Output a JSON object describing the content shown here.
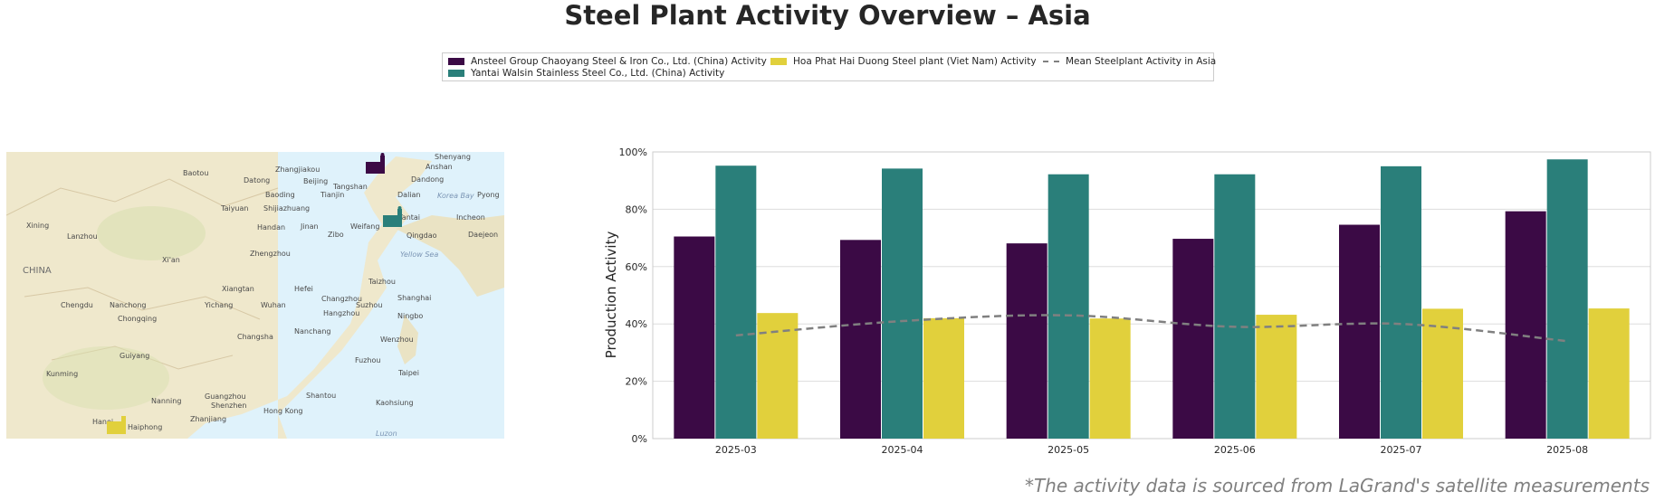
{
  "title": "Steel Plant Activity Overview – Asia",
  "footnote": "*The activity data is sourced from LaGrand's satellite measurements",
  "legend": {
    "items": [
      {
        "label": "Ansteel Group Chaoyang Steel & Iron Co., Ltd. (China) Activity",
        "color": "#3b0a45"
      },
      {
        "label": "Yantai Walsin Stainless Steel Co., Ltd. (China) Activity",
        "color": "#2a7f7a"
      },
      {
        "label": "Hoa Phat Hai Duong Steel plant (Viet Nam) Activity",
        "color": "#e1d03c"
      },
      {
        "label": "Mean Steelplant Activity in Asia",
        "color": "#808080"
      }
    ]
  },
  "map": {
    "place_labels": [
      "Baotou",
      "Zhangjiakou",
      "Shenyang",
      "Anshan",
      "Datong",
      "Beijing",
      "Tangshan",
      "Dandong",
      "Baoding",
      "Tianjin",
      "Dalian",
      "Korea Bay",
      "Pyong",
      "Taiyuan",
      "Shijiazhuang",
      "Dalian",
      "Xining",
      "Lanzhou",
      "Handan",
      "Jinan",
      "Weifang",
      "Yantai",
      "Incheon",
      "Daejeon",
      "Zibo",
      "Qingdao",
      "Yellow Sea",
      "Xi'an",
      "Zhengzhou",
      "CHINA",
      "Xiangtan",
      "Hefei",
      "Taizhou",
      "Chengdu",
      "Nanchong",
      "Yichang",
      "Wuhan",
      "Changzhou",
      "Suzhou",
      "Shanghai",
      "Chongqing",
      "Hangzhou",
      "Ningbo",
      "Changsha",
      "Nanchang",
      "Wenzhou",
      "Guiyang",
      "Fuzhou",
      "Kunming",
      "Taipei",
      "Nanning",
      "Guangzhou",
      "Shantou",
      "Shenzhen",
      "Hong Kong",
      "Kaohsiung",
      "Zhanjiang",
      "Hanoi",
      "Haiphong",
      "Luzon"
    ]
  },
  "chart_data": {
    "type": "bar",
    "categories": [
      "2025-03",
      "2025-04",
      "2025-05",
      "2025-06",
      "2025-07",
      "2025-08"
    ],
    "series": [
      {
        "name": "Ansteel Group Chaoyang Steel & Iron Co., Ltd. (China) Activity",
        "color": "#3b0a45",
        "values": [
          70.5,
          69.3,
          68.1,
          69.7,
          74.6,
          79.3
        ]
      },
      {
        "name": "Yantai Walsin Stainless Steel Co., Ltd. (China) Activity",
        "color": "#2a7f7a",
        "values": [
          95.2,
          94.2,
          92.2,
          92.2,
          95.0,
          97.4
        ]
      },
      {
        "name": "Hoa Phat Hai Duong Steel plant (Viet Nam) Activity",
        "color": "#e1d03c",
        "values": [
          43.8,
          42.0,
          41.9,
          43.2,
          45.3,
          45.4
        ]
      }
    ],
    "mean_line": {
      "name": "Mean Steelplant Activity in Asia",
      "values": [
        36.0,
        41.0,
        43.0,
        39.0,
        40.0,
        34.0
      ],
      "style": "dashed",
      "color": "#808080"
    },
    "ylabel": "Production Activity",
    "xlabel": "",
    "ylim": [
      0,
      100
    ],
    "yticks": [
      "0%",
      "20%",
      "40%",
      "60%",
      "80%",
      "100%"
    ],
    "ytick_values": [
      0,
      20,
      40,
      60,
      80,
      100
    ],
    "grid": true
  }
}
